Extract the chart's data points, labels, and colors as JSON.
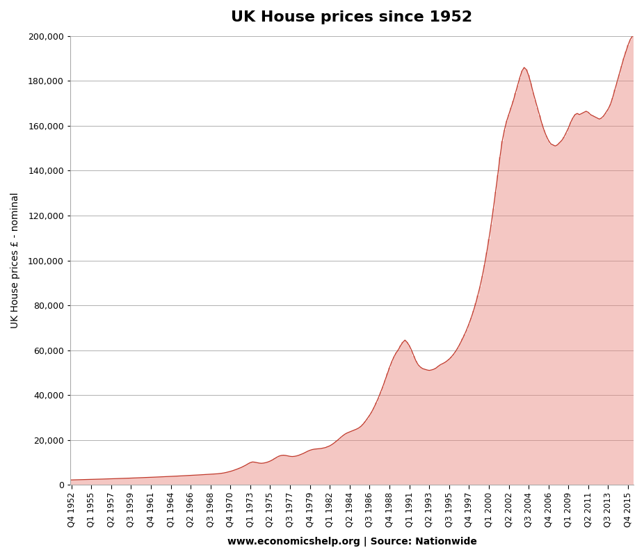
{
  "title": "UK House prices since 1952",
  "ylabel": "UK House prices £ - nominal",
  "xlabel": "www.economicshelp.org | Source: Nationwide",
  "line_color": "#c0392b",
  "fill_color": "#e8837a",
  "fill_alpha": 0.45,
  "background_color": "#ffffff",
  "ylim": [
    0,
    200000
  ],
  "yticks": [
    0,
    20000,
    40000,
    60000,
    80000,
    100000,
    120000,
    140000,
    160000,
    180000,
    200000
  ],
  "xtick_labels": [
    "Q4 1952",
    "Q1 1955",
    "Q2 1957",
    "Q3 1959",
    "Q4 1961",
    "Q1 1964",
    "Q2 1966",
    "Q3 1968",
    "Q4 1970",
    "Q1 1973",
    "Q2 1975",
    "Q3 1977",
    "Q4 1979",
    "Q1 1982",
    "Q2 1984",
    "Q3 1986",
    "Q4 1988",
    "Q1 1991",
    "Q2 1993",
    "Q3 1995",
    "Q4 1997",
    "Q1 2000",
    "Q2 2002",
    "Q3 2004",
    "Q4 2006",
    "Q1 2009",
    "Q2 2011",
    "Q3 2013",
    "Q4 2015"
  ],
  "prices": [
    2182,
    2207,
    2231,
    2257,
    2283,
    2309,
    2336,
    2363,
    2391,
    2419,
    2447,
    2476,
    2505,
    2535,
    2565,
    2596,
    2627,
    2659,
    2691,
    2724,
    2757,
    2791,
    2825,
    2860,
    2895,
    2931,
    2967,
    3004,
    3041,
    3079,
    3117,
    3156,
    3195,
    3235,
    3276,
    3317,
    3358,
    3400,
    3443,
    3486,
    3530,
    3575,
    3620,
    3666,
    3712,
    3759,
    3807,
    3855,
    3904,
    3954,
    4004,
    4055,
    4107,
    4159,
    4212,
    4266,
    4321,
    4376,
    4432,
    4489,
    4546,
    4604,
    4663,
    4723,
    4784,
    4836,
    4920,
    5020,
    5150,
    5300,
    5500,
    5750,
    6000,
    6300,
    6650,
    7000,
    7400,
    7800,
    8300,
    8800,
    9400,
    9900,
    10200,
    10100,
    9900,
    9700,
    9600,
    9700,
    9900,
    10200,
    10600,
    11100,
    11700,
    12300,
    12800,
    13100,
    13200,
    13100,
    12900,
    12700,
    12600,
    12700,
    12900,
    13200,
    13600,
    14000,
    14500,
    15000,
    15400,
    15700,
    15900,
    16000,
    16100,
    16200,
    16400,
    16600,
    17000,
    17400,
    18000,
    18700,
    19500,
    20300,
    21200,
    22000,
    22700,
    23200,
    23600,
    24000,
    24400,
    24800,
    25300,
    26000,
    27000,
    28200,
    29600,
    31000,
    32600,
    34500,
    36600,
    38800,
    41300,
    43800,
    46600,
    49500,
    52200,
    54800,
    57000,
    58800,
    60200,
    62000,
    63500,
    64500,
    63500,
    62000,
    60000,
    57500,
    55200,
    53500,
    52500,
    51800,
    51500,
    51200,
    51000,
    51200,
    51500,
    52000,
    52800,
    53500,
    54000,
    54500,
    55200,
    56000,
    57000,
    58200,
    59600,
    61200,
    63000,
    65000,
    67000,
    69300,
    71800,
    74500,
    77500,
    80800,
    84500,
    88500,
    93000,
    98000,
    103500,
    109500,
    116000,
    123000,
    130500,
    138000,
    146000,
    153000,
    158000,
    162000,
    165000,
    168000,
    171000,
    174500,
    178000,
    181500,
    184500,
    186000,
    185000,
    182500,
    179000,
    175000,
    171500,
    168000,
    164500,
    161000,
    158000,
    155500,
    153500,
    152000,
    151500,
    151000,
    151500,
    152500,
    153500,
    155000,
    157000,
    159000,
    161500,
    163500,
    165000,
    165500,
    165000,
    165500,
    166000,
    166500,
    166000,
    165000,
    164500,
    164000,
    163500,
    163000,
    163500,
    164500,
    166000,
    167500,
    169500,
    172500,
    176000,
    179500,
    183000,
    186500,
    190000,
    193000,
    196000,
    198500,
    200000
  ]
}
